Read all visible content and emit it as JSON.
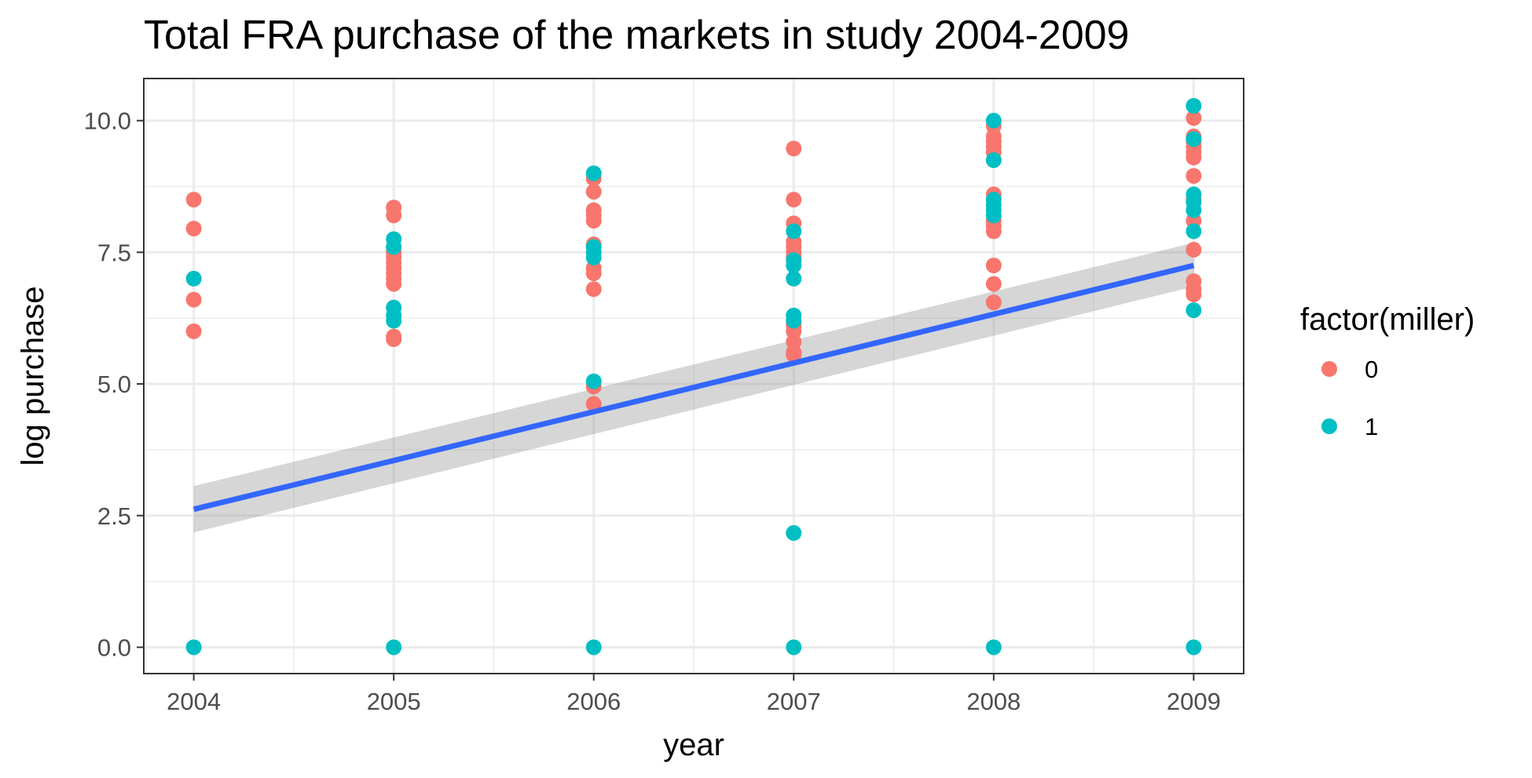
{
  "chart_data": {
    "type": "scatter",
    "title": "Total FRA purchase of the markets in study 2004-2009",
    "xlabel": "year",
    "ylabel": "log purchase",
    "xlim": [
      2003.75,
      2009.25
    ],
    "ylim": [
      -0.5,
      10.8
    ],
    "x_ticks": [
      2004,
      2005,
      2006,
      2007,
      2008,
      2009
    ],
    "y_ticks": [
      0,
      2.5,
      5,
      7.5,
      10
    ],
    "x_tick_labels": [
      "2004",
      "2005",
      "2006",
      "2007",
      "2008",
      "2009"
    ],
    "y_tick_labels": [
      "0.0",
      "2.5",
      "5.0",
      "7.5",
      "10.0"
    ],
    "grid": true,
    "legend": {
      "title": "factor(miller)",
      "placement": "right",
      "entries": [
        {
          "label": "0",
          "color": "#F8766D"
        },
        {
          "label": "1",
          "color": "#00BFC4"
        }
      ]
    },
    "series": [
      {
        "name": "0",
        "color": "#F8766D",
        "points": [
          [
            2004,
            8.5
          ],
          [
            2004,
            7.95
          ],
          [
            2004,
            6.6
          ],
          [
            2004,
            6.0
          ],
          [
            2005,
            8.35
          ],
          [
            2005,
            8.2
          ],
          [
            2005,
            7.6
          ],
          [
            2005,
            7.5
          ],
          [
            2005,
            7.4
          ],
          [
            2005,
            7.3
          ],
          [
            2005,
            7.2
          ],
          [
            2005,
            7.1
          ],
          [
            2005,
            7.0
          ],
          [
            2005,
            6.9
          ],
          [
            2005,
            5.9
          ],
          [
            2005,
            5.85
          ],
          [
            2006,
            8.9
          ],
          [
            2006,
            8.65
          ],
          [
            2006,
            8.3
          ],
          [
            2006,
            8.2
          ],
          [
            2006,
            8.1
          ],
          [
            2006,
            7.65
          ],
          [
            2006,
            7.2
          ],
          [
            2006,
            7.1
          ],
          [
            2006,
            6.8
          ],
          [
            2006,
            4.95
          ],
          [
            2006,
            4.62
          ],
          [
            2007,
            9.47
          ],
          [
            2007,
            8.5
          ],
          [
            2007,
            8.05
          ],
          [
            2007,
            7.7
          ],
          [
            2007,
            7.6
          ],
          [
            2007,
            7.5
          ],
          [
            2007,
            7.4
          ],
          [
            2007,
            6.15
          ],
          [
            2007,
            6.1
          ],
          [
            2007,
            6.0
          ],
          [
            2007,
            5.8
          ],
          [
            2007,
            5.6
          ],
          [
            2007,
            5.55
          ],
          [
            2008,
            9.9
          ],
          [
            2008,
            9.7
          ],
          [
            2008,
            9.6
          ],
          [
            2008,
            9.5
          ],
          [
            2008,
            9.4
          ],
          [
            2008,
            8.6
          ],
          [
            2008,
            8.1
          ],
          [
            2008,
            8.0
          ],
          [
            2008,
            7.9
          ],
          [
            2008,
            7.25
          ],
          [
            2008,
            6.9
          ],
          [
            2008,
            6.55
          ],
          [
            2009,
            10.05
          ],
          [
            2009,
            9.7
          ],
          [
            2009,
            9.6
          ],
          [
            2009,
            9.5
          ],
          [
            2009,
            9.4
          ],
          [
            2009,
            9.3
          ],
          [
            2009,
            8.95
          ],
          [
            2009,
            8.5
          ],
          [
            2009,
            8.1
          ],
          [
            2009,
            7.55
          ],
          [
            2009,
            6.95
          ],
          [
            2009,
            6.8
          ],
          [
            2009,
            6.7
          ]
        ]
      },
      {
        "name": "1",
        "color": "#00BFC4",
        "points": [
          [
            2004,
            7.0
          ],
          [
            2004,
            0.0
          ],
          [
            2005,
            7.75
          ],
          [
            2005,
            7.6
          ],
          [
            2005,
            6.45
          ],
          [
            2005,
            6.3
          ],
          [
            2005,
            6.2
          ],
          [
            2005,
            0.0
          ],
          [
            2006,
            9.0
          ],
          [
            2006,
            7.6
          ],
          [
            2006,
            7.5
          ],
          [
            2006,
            7.4
          ],
          [
            2006,
            5.05
          ],
          [
            2006,
            0.0
          ],
          [
            2007,
            7.9
          ],
          [
            2007,
            7.35
          ],
          [
            2007,
            7.25
          ],
          [
            2007,
            7.0
          ],
          [
            2007,
            6.3
          ],
          [
            2007,
            6.2
          ],
          [
            2007,
            2.17
          ],
          [
            2007,
            0.0
          ],
          [
            2008,
            10.0
          ],
          [
            2008,
            9.25
          ],
          [
            2008,
            8.5
          ],
          [
            2008,
            8.4
          ],
          [
            2008,
            8.3
          ],
          [
            2008,
            8.2
          ],
          [
            2008,
            0.0
          ],
          [
            2009,
            10.28
          ],
          [
            2009,
            9.65
          ],
          [
            2009,
            8.6
          ],
          [
            2009,
            8.45
          ],
          [
            2009,
            8.3
          ],
          [
            2009,
            7.9
          ],
          [
            2009,
            6.4
          ],
          [
            2009,
            0.0
          ]
        ]
      }
    ],
    "fit_line": {
      "color": "#3366FF",
      "ribbon_color": "#999999",
      "points": [
        [
          2004,
          2.62
        ],
        [
          2009,
          7.25
        ]
      ],
      "ribbon_lower": [
        [
          2004,
          2.18
        ],
        [
          2009,
          6.85
        ]
      ],
      "ribbon_upper": [
        [
          2004,
          3.06
        ],
        [
          2009,
          7.68
        ]
      ]
    }
  }
}
